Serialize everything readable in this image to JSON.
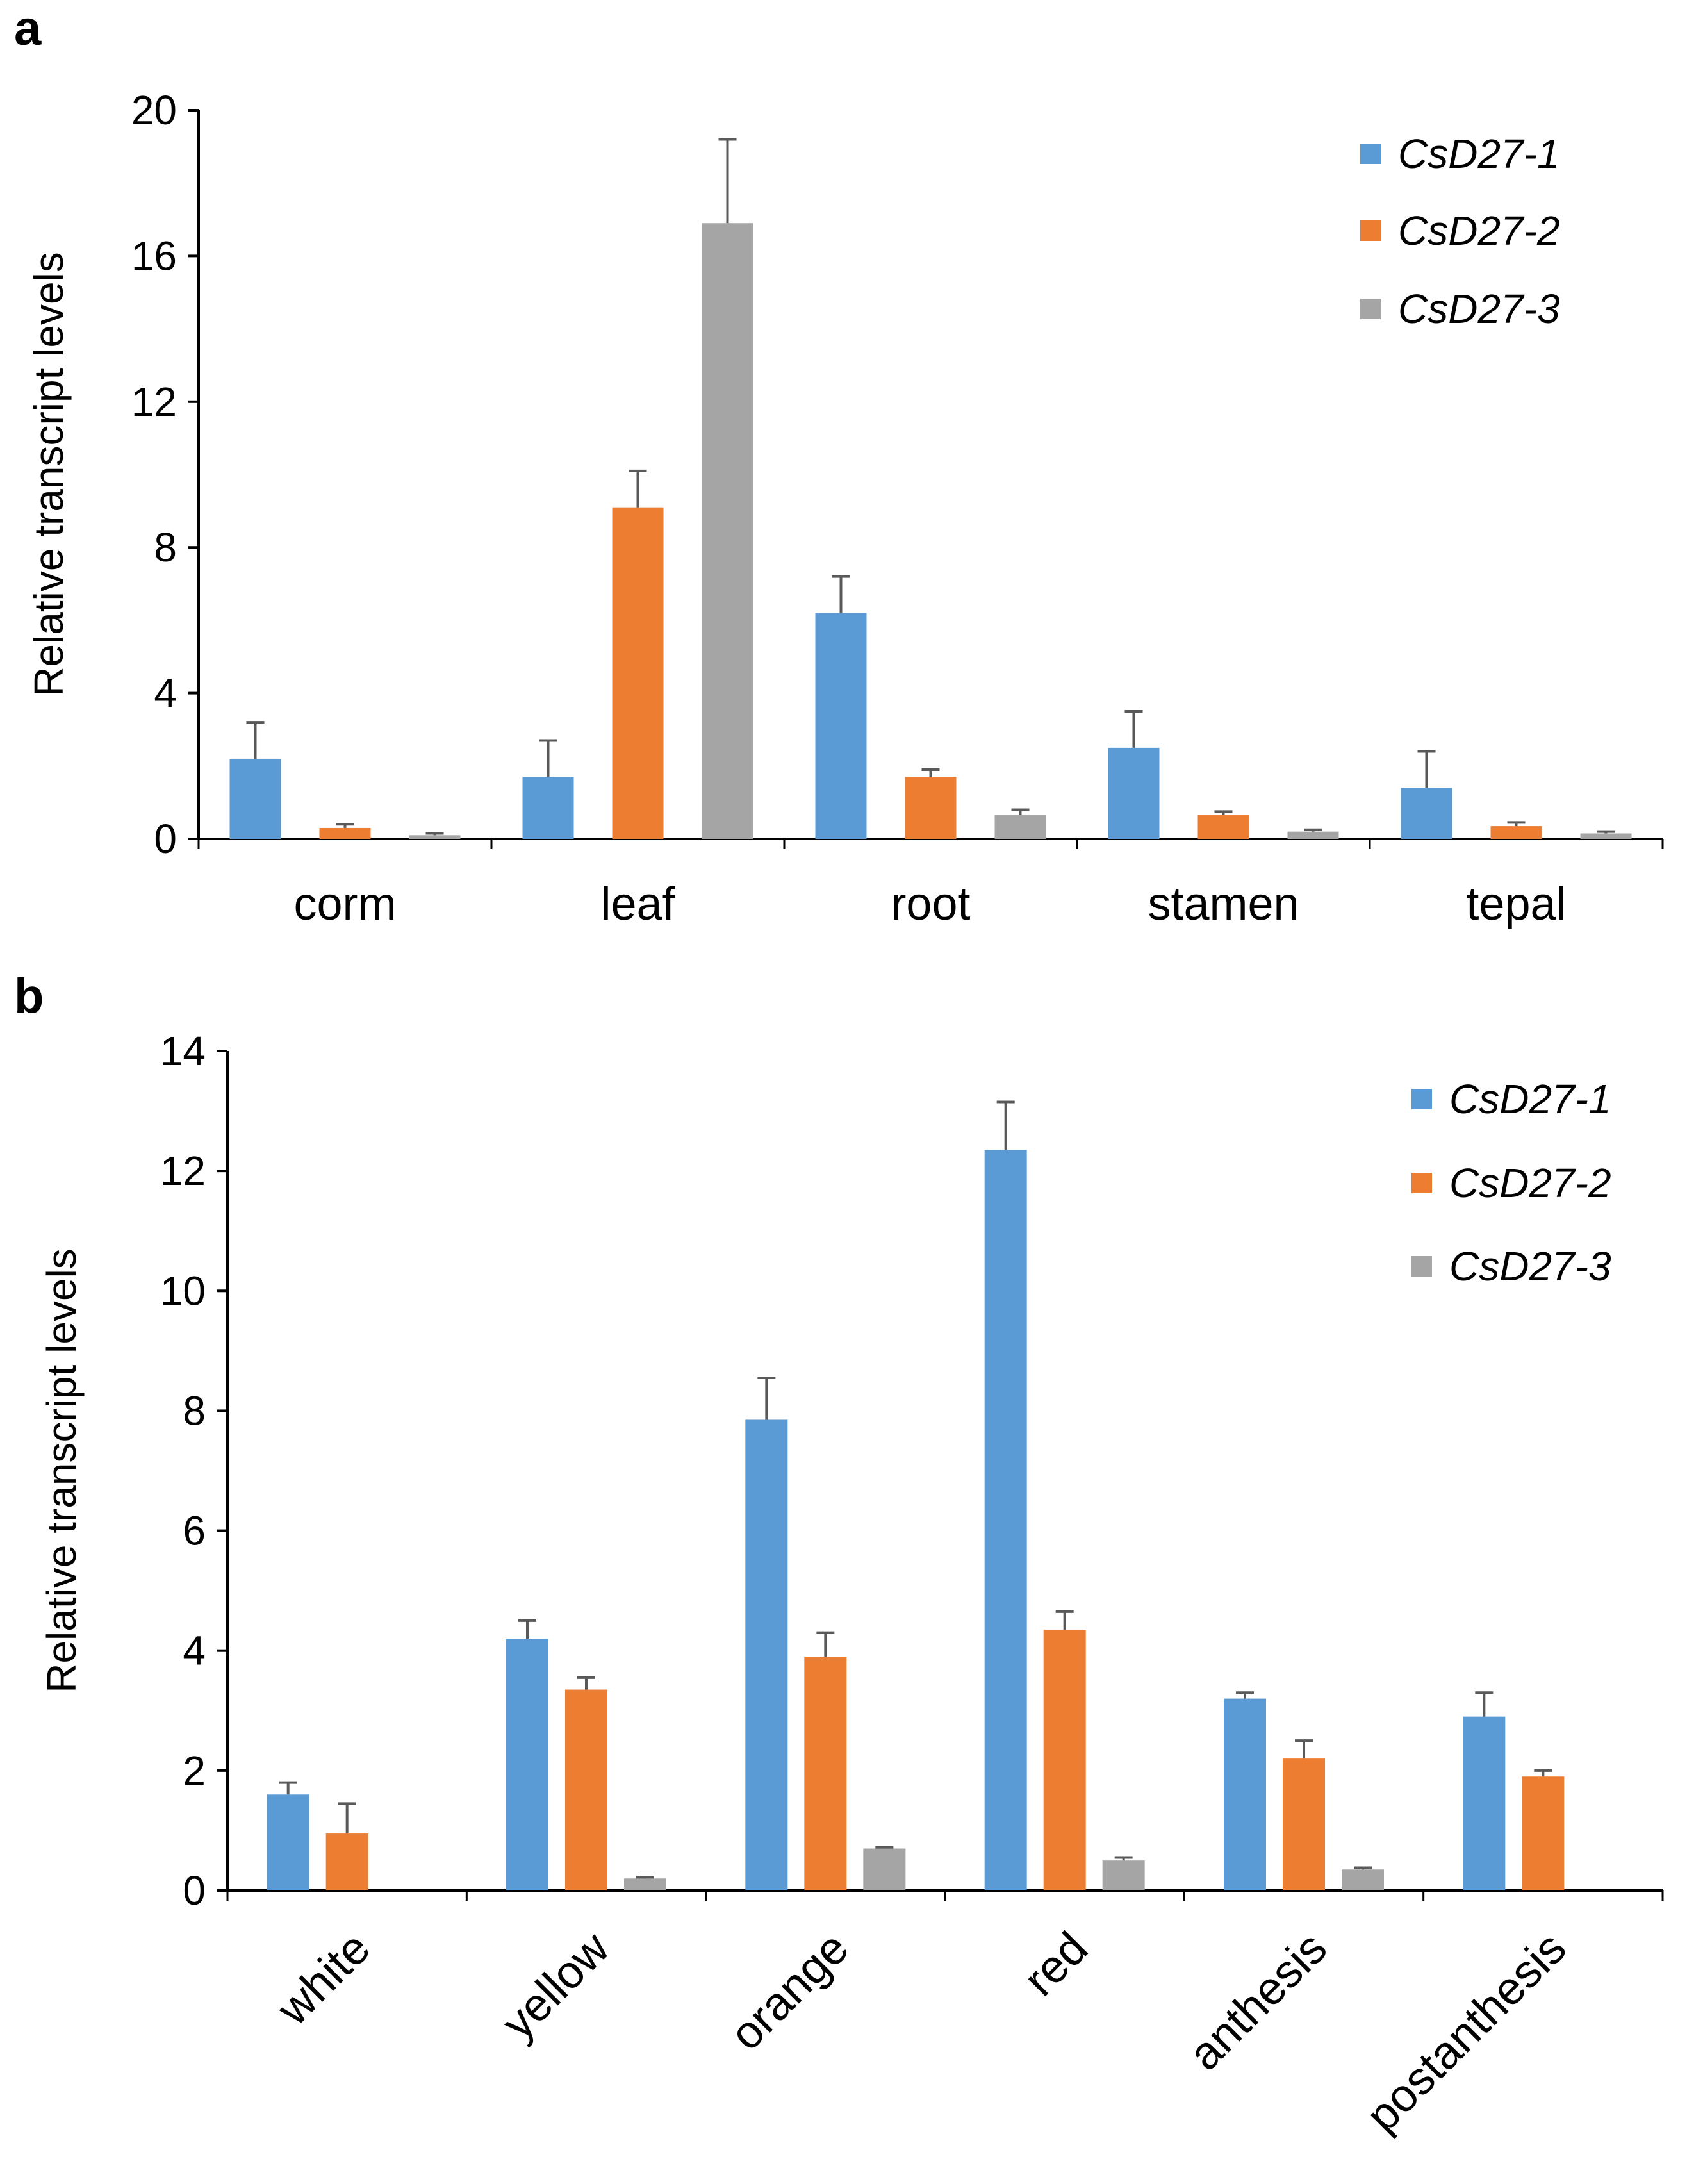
{
  "chart_data": [
    {
      "panel_label": "a",
      "type": "bar",
      "ylabel": "Relative transcript levels",
      "xlabel": "",
      "ylim": [
        0,
        20
      ],
      "yticks": [
        0,
        4,
        8,
        12,
        16,
        20
      ],
      "categories": [
        "corm",
        "leaf",
        "root",
        "stamen",
        "tepal"
      ],
      "series": [
        {
          "name": "CsD27-1",
          "color": "#5B9BD5",
          "values": [
            2.2,
            1.7,
            6.2,
            2.5,
            1.4
          ],
          "errors": [
            1.0,
            1.0,
            1.0,
            1.0,
            1.0
          ]
        },
        {
          "name": "CsD27-2",
          "color": "#ED7D31",
          "values": [
            0.3,
            9.1,
            1.7,
            0.65,
            0.35
          ],
          "errors": [
            0.1,
            1.0,
            0.2,
            0.1,
            0.1
          ]
        },
        {
          "name": "CsD27-3",
          "color": "#A5A5A5",
          "values": [
            0.1,
            16.9,
            0.65,
            0.2,
            0.15
          ],
          "errors": [
            0.05,
            2.3,
            0.15,
            0.05,
            0.05
          ]
        }
      ],
      "legend_position": "top-right",
      "grid": false
    },
    {
      "panel_label": "b",
      "type": "bar",
      "ylabel": "Relative transcript levels",
      "xlabel": "",
      "ylim": [
        0,
        14
      ],
      "yticks": [
        0,
        2,
        4,
        6,
        8,
        10,
        12,
        14
      ],
      "categories": [
        "white",
        "yellow",
        "orange",
        "red",
        "anthesis",
        "postanthesis"
      ],
      "series": [
        {
          "name": "CsD27-1",
          "color": "#5B9BD5",
          "values": [
            1.6,
            4.2,
            7.85,
            12.35,
            3.2,
            2.9
          ],
          "errors": [
            0.2,
            0.3,
            0.7,
            0.8,
            0.1,
            0.4
          ]
        },
        {
          "name": "CsD27-2",
          "color": "#ED7D31",
          "values": [
            0.95,
            3.35,
            3.9,
            4.35,
            2.2,
            1.9
          ],
          "errors": [
            0.5,
            0.2,
            0.4,
            0.3,
            0.3,
            0.1
          ]
        },
        {
          "name": "CsD27-3",
          "color": "#A5A5A5",
          "values": [
            0,
            0.2,
            0.7,
            0.5,
            0.35,
            0
          ],
          "errors": [
            0,
            0.02,
            0.02,
            0.05,
            0.03,
            0
          ]
        }
      ],
      "legend_position": "top-right",
      "grid": false,
      "tick_label_rotation": "-45deg"
    }
  ]
}
